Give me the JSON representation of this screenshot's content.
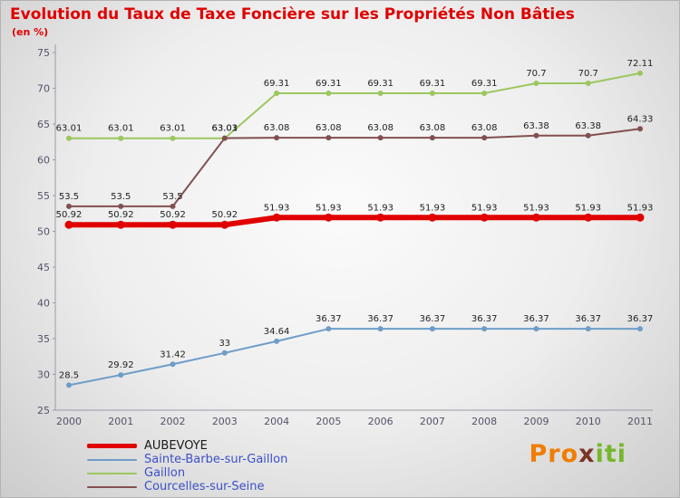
{
  "chart_data": {
    "type": "line",
    "title": "Evolution du Taux de Taxe Foncière sur les Propriétés Non Bâties",
    "subtitle": "(en %)",
    "title_color": "#e00000",
    "x": [
      2000,
      2001,
      2002,
      2003,
      2004,
      2005,
      2006,
      2007,
      2008,
      2009,
      2010,
      2011
    ],
    "xlabel": "",
    "ylabel": "",
    "ylim": [
      25,
      75
    ],
    "yticks": [
      25,
      30,
      35,
      40,
      45,
      50,
      55,
      60,
      65,
      70,
      75
    ],
    "grid": false,
    "legend_position": "bottom-left",
    "value_label_color": "#222222",
    "axis_color": "#9a9aa6",
    "series": [
      {
        "name": "AUBEVOYE",
        "color": "#e10000",
        "line_width": 6,
        "marker_radius": 4.5,
        "values": [
          50.92,
          50.92,
          50.92,
          50.92,
          51.93,
          51.93,
          51.93,
          51.93,
          51.93,
          51.93,
          51.93,
          51.93
        ]
      },
      {
        "name": "Sainte-Barbe-sur-Gaillon",
        "color": "#6e9dc9",
        "line_width": 2,
        "marker_radius": 3,
        "values": [
          28.5,
          29.92,
          31.42,
          33,
          34.64,
          36.37,
          36.37,
          36.37,
          36.37,
          36.37,
          36.37,
          36.37
        ]
      },
      {
        "name": "Gaillon",
        "color": "#9cc75e",
        "line_width": 2,
        "marker_radius": 3,
        "values": [
          63.01,
          63.01,
          63.01,
          63.01,
          69.31,
          69.31,
          69.31,
          69.31,
          69.31,
          70.7,
          70.7,
          72.11
        ]
      },
      {
        "name": "Courcelles-sur-Seine",
        "color": "#825050",
        "line_width": 2,
        "marker_radius": 3,
        "values": [
          53.5,
          53.5,
          53.5,
          63.03,
          63.08,
          63.08,
          63.08,
          63.08,
          63.08,
          63.38,
          63.38,
          64.33
        ]
      }
    ]
  },
  "legend": {
    "label_colors": [
      "#1a1a1a",
      "#3c50c8",
      "#3c50c8",
      "#3c50c8"
    ]
  },
  "logo": {
    "pro": "Pro",
    "x": "x",
    "iti": "iti",
    "pro_color": "#f07d00",
    "x_color": "#7b3527",
    "iti_color": "#76b82a"
  }
}
